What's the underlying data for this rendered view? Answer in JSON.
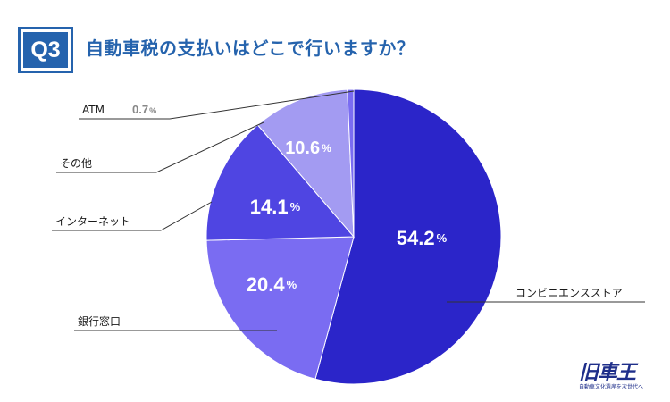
{
  "header": {
    "badge": "Q3",
    "title": "自動車税の支払いはどこで行いますか？"
  },
  "logo": {
    "mark": "旧車王",
    "tagline": "自動車文化遺産を次世代へ"
  },
  "colors": {
    "accent": "#2563ad",
    "text": "#1a1a1a"
  },
  "chart_data": {
    "type": "pie",
    "title": "自動車税の支払いはどこで行いますか？",
    "unit": "%",
    "slices": [
      {
        "label": "コンビニエンスストア",
        "value": 54.2,
        "value_text": "54.2",
        "color": "#2b25c9",
        "show_inside": true
      },
      {
        "label": "銀行窓口",
        "value": 20.4,
        "value_text": "20.4",
        "color": "#7a6cf2",
        "show_inside": true
      },
      {
        "label": "インターネット",
        "value": 14.1,
        "value_text": "14.1",
        "color": "#4f45e2",
        "show_inside": true
      },
      {
        "label": "その他",
        "value": 10.6,
        "value_text": "10.6",
        "color": "#a39bf2",
        "show_inside": true
      },
      {
        "label": "ATM",
        "value": 0.7,
        "value_text": "0.7",
        "color": "#7a6cf2",
        "show_inside": false
      }
    ],
    "legend": "leader-lines"
  }
}
